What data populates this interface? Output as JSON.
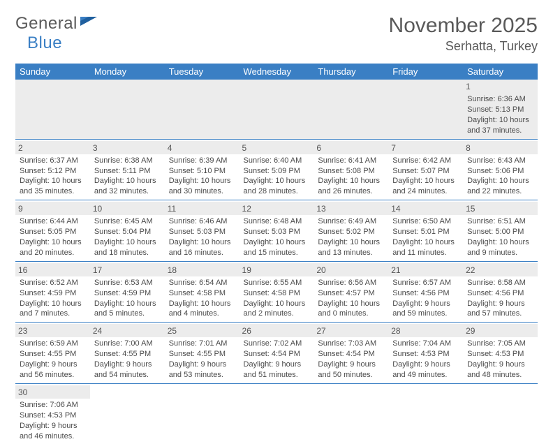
{
  "logo": {
    "text1": "General",
    "text2": "Blue"
  },
  "title": {
    "month": "November 2025",
    "location": "Serhatta, Turkey"
  },
  "colors": {
    "headerBg": "#3a7fc4",
    "border": "#3a7fc4",
    "stripe": "#ececec",
    "text": "#4a4a4a"
  },
  "weekdays": [
    "Sunday",
    "Monday",
    "Tuesday",
    "Wednesday",
    "Thursday",
    "Friday",
    "Saturday"
  ],
  "cells": [
    [
      null,
      null,
      null,
      null,
      null,
      null,
      {
        "n": "1",
        "sr": "Sunrise: 6:36 AM",
        "ss": "Sunset: 5:13 PM",
        "d1": "Daylight: 10 hours",
        "d2": "and 37 minutes."
      }
    ],
    [
      {
        "n": "2",
        "sr": "Sunrise: 6:37 AM",
        "ss": "Sunset: 5:12 PM",
        "d1": "Daylight: 10 hours",
        "d2": "and 35 minutes."
      },
      {
        "n": "3",
        "sr": "Sunrise: 6:38 AM",
        "ss": "Sunset: 5:11 PM",
        "d1": "Daylight: 10 hours",
        "d2": "and 32 minutes."
      },
      {
        "n": "4",
        "sr": "Sunrise: 6:39 AM",
        "ss": "Sunset: 5:10 PM",
        "d1": "Daylight: 10 hours",
        "d2": "and 30 minutes."
      },
      {
        "n": "5",
        "sr": "Sunrise: 6:40 AM",
        "ss": "Sunset: 5:09 PM",
        "d1": "Daylight: 10 hours",
        "d2": "and 28 minutes."
      },
      {
        "n": "6",
        "sr": "Sunrise: 6:41 AM",
        "ss": "Sunset: 5:08 PM",
        "d1": "Daylight: 10 hours",
        "d2": "and 26 minutes."
      },
      {
        "n": "7",
        "sr": "Sunrise: 6:42 AM",
        "ss": "Sunset: 5:07 PM",
        "d1": "Daylight: 10 hours",
        "d2": "and 24 minutes."
      },
      {
        "n": "8",
        "sr": "Sunrise: 6:43 AM",
        "ss": "Sunset: 5:06 PM",
        "d1": "Daylight: 10 hours",
        "d2": "and 22 minutes."
      }
    ],
    [
      {
        "n": "9",
        "sr": "Sunrise: 6:44 AM",
        "ss": "Sunset: 5:05 PM",
        "d1": "Daylight: 10 hours",
        "d2": "and 20 minutes."
      },
      {
        "n": "10",
        "sr": "Sunrise: 6:45 AM",
        "ss": "Sunset: 5:04 PM",
        "d1": "Daylight: 10 hours",
        "d2": "and 18 minutes."
      },
      {
        "n": "11",
        "sr": "Sunrise: 6:46 AM",
        "ss": "Sunset: 5:03 PM",
        "d1": "Daylight: 10 hours",
        "d2": "and 16 minutes."
      },
      {
        "n": "12",
        "sr": "Sunrise: 6:48 AM",
        "ss": "Sunset: 5:03 PM",
        "d1": "Daylight: 10 hours",
        "d2": "and 15 minutes."
      },
      {
        "n": "13",
        "sr": "Sunrise: 6:49 AM",
        "ss": "Sunset: 5:02 PM",
        "d1": "Daylight: 10 hours",
        "d2": "and 13 minutes."
      },
      {
        "n": "14",
        "sr": "Sunrise: 6:50 AM",
        "ss": "Sunset: 5:01 PM",
        "d1": "Daylight: 10 hours",
        "d2": "and 11 minutes."
      },
      {
        "n": "15",
        "sr": "Sunrise: 6:51 AM",
        "ss": "Sunset: 5:00 PM",
        "d1": "Daylight: 10 hours",
        "d2": "and 9 minutes."
      }
    ],
    [
      {
        "n": "16",
        "sr": "Sunrise: 6:52 AM",
        "ss": "Sunset: 4:59 PM",
        "d1": "Daylight: 10 hours",
        "d2": "and 7 minutes."
      },
      {
        "n": "17",
        "sr": "Sunrise: 6:53 AM",
        "ss": "Sunset: 4:59 PM",
        "d1": "Daylight: 10 hours",
        "d2": "and 5 minutes."
      },
      {
        "n": "18",
        "sr": "Sunrise: 6:54 AM",
        "ss": "Sunset: 4:58 PM",
        "d1": "Daylight: 10 hours",
        "d2": "and 4 minutes."
      },
      {
        "n": "19",
        "sr": "Sunrise: 6:55 AM",
        "ss": "Sunset: 4:58 PM",
        "d1": "Daylight: 10 hours",
        "d2": "and 2 minutes."
      },
      {
        "n": "20",
        "sr": "Sunrise: 6:56 AM",
        "ss": "Sunset: 4:57 PM",
        "d1": "Daylight: 10 hours",
        "d2": "and 0 minutes."
      },
      {
        "n": "21",
        "sr": "Sunrise: 6:57 AM",
        "ss": "Sunset: 4:56 PM",
        "d1": "Daylight: 9 hours",
        "d2": "and 59 minutes."
      },
      {
        "n": "22",
        "sr": "Sunrise: 6:58 AM",
        "ss": "Sunset: 4:56 PM",
        "d1": "Daylight: 9 hours",
        "d2": "and 57 minutes."
      }
    ],
    [
      {
        "n": "23",
        "sr": "Sunrise: 6:59 AM",
        "ss": "Sunset: 4:55 PM",
        "d1": "Daylight: 9 hours",
        "d2": "and 56 minutes."
      },
      {
        "n": "24",
        "sr": "Sunrise: 7:00 AM",
        "ss": "Sunset: 4:55 PM",
        "d1": "Daylight: 9 hours",
        "d2": "and 54 minutes."
      },
      {
        "n": "25",
        "sr": "Sunrise: 7:01 AM",
        "ss": "Sunset: 4:55 PM",
        "d1": "Daylight: 9 hours",
        "d2": "and 53 minutes."
      },
      {
        "n": "26",
        "sr": "Sunrise: 7:02 AM",
        "ss": "Sunset: 4:54 PM",
        "d1": "Daylight: 9 hours",
        "d2": "and 51 minutes."
      },
      {
        "n": "27",
        "sr": "Sunrise: 7:03 AM",
        "ss": "Sunset: 4:54 PM",
        "d1": "Daylight: 9 hours",
        "d2": "and 50 minutes."
      },
      {
        "n": "28",
        "sr": "Sunrise: 7:04 AM",
        "ss": "Sunset: 4:53 PM",
        "d1": "Daylight: 9 hours",
        "d2": "and 49 minutes."
      },
      {
        "n": "29",
        "sr": "Sunrise: 7:05 AM",
        "ss": "Sunset: 4:53 PM",
        "d1": "Daylight: 9 hours",
        "d2": "and 48 minutes."
      }
    ],
    [
      {
        "n": "30",
        "sr": "Sunrise: 7:06 AM",
        "ss": "Sunset: 4:53 PM",
        "d1": "Daylight: 9 hours",
        "d2": "and 46 minutes."
      },
      null,
      null,
      null,
      null,
      null,
      null
    ]
  ]
}
